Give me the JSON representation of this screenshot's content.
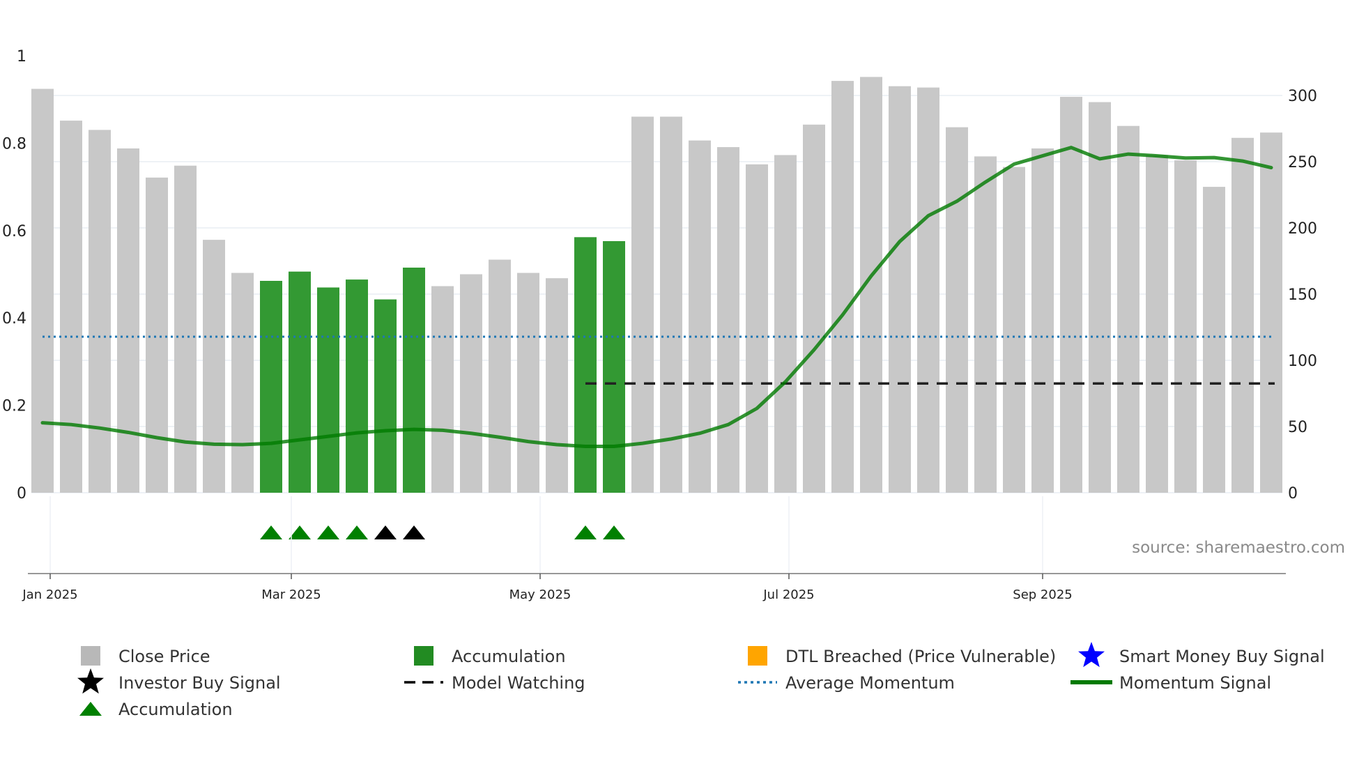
{
  "chart_data": {
    "type": "bar",
    "source": "source: sharemaestro.com",
    "x_tick_labels": [
      "Jan 2025",
      "Mar 2025",
      "May 2025",
      "Jul 2025",
      "Sep 2025"
    ],
    "y_left": {
      "range": [
        0,
        1
      ],
      "ticks": [
        "0",
        "0.2",
        "0.4",
        "0.6",
        "0.8",
        "1"
      ]
    },
    "y_right": {
      "range": [
        0,
        300
      ],
      "ticks": [
        "0",
        "50",
        "100",
        "150",
        "200",
        "250",
        "300"
      ]
    },
    "close_price": {
      "name": "Close Price",
      "values": [
        305,
        281,
        274,
        260,
        238,
        247,
        191,
        166,
        160,
        167,
        155,
        161,
        146,
        170,
        156,
        165,
        176,
        166,
        162,
        193,
        190,
        284,
        284,
        266,
        261,
        248,
        255,
        278,
        311,
        314,
        307,
        306,
        276,
        254,
        246,
        260,
        299,
        295,
        277,
        255,
        251,
        231,
        268,
        272
      ],
      "accumulation_flags": [
        0,
        0,
        0,
        0,
        0,
        0,
        0,
        0,
        1,
        1,
        1,
        1,
        1,
        1,
        0,
        0,
        0,
        0,
        0,
        1,
        1,
        0,
        0,
        0,
        0,
        0,
        0,
        0,
        0,
        0,
        0,
        0,
        0,
        0,
        0,
        0,
        0,
        0,
        0,
        0,
        0,
        0,
        0,
        0
      ]
    },
    "momentum_signal": {
      "name": "Momentum Signal",
      "values": [
        0.16,
        0.156,
        0.148,
        0.138,
        0.126,
        0.116,
        0.111,
        0.11,
        0.113,
        0.121,
        0.129,
        0.137,
        0.142,
        0.145,
        0.143,
        0.136,
        0.127,
        0.117,
        0.11,
        0.106,
        0.106,
        0.113,
        0.123,
        0.136,
        0.156,
        0.193,
        0.254,
        0.327,
        0.407,
        0.496,
        0.575,
        0.634,
        0.667,
        0.711,
        0.752,
        0.771,
        0.79,
        0.764,
        0.775,
        0.771,
        0.766,
        0.767,
        0.759,
        0.744
      ]
    },
    "average_momentum": {
      "name": "Average Momentum",
      "value": 0.357
    },
    "model_watching": {
      "name": "Model Watching",
      "value": 0.25,
      "start_index": 19
    },
    "signals": [
      {
        "index": 8,
        "type": "Accumulation"
      },
      {
        "index": 9,
        "type": "Accumulation"
      },
      {
        "index": 10,
        "type": "Accumulation"
      },
      {
        "index": 11,
        "type": "Accumulation"
      },
      {
        "index": 12,
        "type": "Investor Buy Signal"
      },
      {
        "index": 13,
        "type": "Investor Buy Signal"
      },
      {
        "index": 19,
        "type": "Accumulation"
      },
      {
        "index": 20,
        "type": "Accumulation"
      }
    ],
    "legend": [
      {
        "label": "Close Price",
        "icon": "gray-square-icon",
        "color": "#b8b8b8"
      },
      {
        "label": "Accumulation",
        "icon": "green-square-icon",
        "color": "#228b22"
      },
      {
        "label": "DTL Breached (Price Vulnerable)",
        "icon": "orange-square-icon",
        "color": "#ffa500"
      },
      {
        "label": "Smart Money Buy Signal",
        "icon": "blue-star-icon",
        "color": "#0000ff"
      },
      {
        "label": "Investor Buy Signal",
        "icon": "black-star-icon",
        "color": "#000000"
      },
      {
        "label": "Model Watching",
        "icon": "dashed-line-icon",
        "color": "#000000"
      },
      {
        "label": "Average Momentum",
        "icon": "dotted-line-icon",
        "color": "#1f77b4"
      },
      {
        "label": "Momentum Signal",
        "icon": "solid-line-icon",
        "color": "#007a00"
      },
      {
        "label": "Accumulation",
        "icon": "green-triangle-icon",
        "color": "#008000"
      }
    ],
    "colors": {
      "bar": "#c8c8c8",
      "accumulation_bar": "#339933",
      "momentum": "#007a00",
      "average": "#1f77b4",
      "watching": "#000000",
      "accumulation_marker": "#008000",
      "investor_marker": "#000000"
    }
  }
}
